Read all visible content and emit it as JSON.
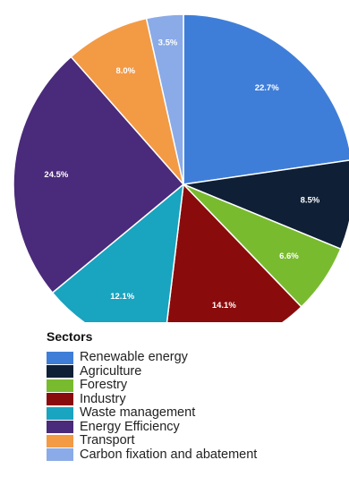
{
  "chart_data": {
    "type": "pie",
    "title": "",
    "slices": [
      {
        "label": "Renewable energy",
        "value": 22.7,
        "display": "22.7%",
        "color": "#3f7ed8"
      },
      {
        "label": "Agriculture",
        "value": 8.5,
        "display": "8.5%",
        "color": "#0f1f36"
      },
      {
        "label": "Forestry",
        "value": 6.6,
        "display": "6.6%",
        "color": "#79bb2f"
      },
      {
        "label": "Industry",
        "value": 14.1,
        "display": "14.1%",
        "color": "#8a0b0b"
      },
      {
        "label": "Waste management",
        "value": 12.1,
        "display": "12.1%",
        "color": "#19a4c0"
      },
      {
        "label": "Energy Efficiency",
        "value": 24.5,
        "display": "24.5%",
        "color": "#4a2a7a"
      },
      {
        "label": "Transport",
        "value": 8.0,
        "display": "8.0%",
        "color": "#f39a45"
      },
      {
        "label": "Carbon fixation and abatement",
        "value": 3.5,
        "display": "3.5%",
        "color": "#8aabe7"
      }
    ],
    "legend": {
      "title": "Sectors",
      "placement": "bottom"
    }
  }
}
